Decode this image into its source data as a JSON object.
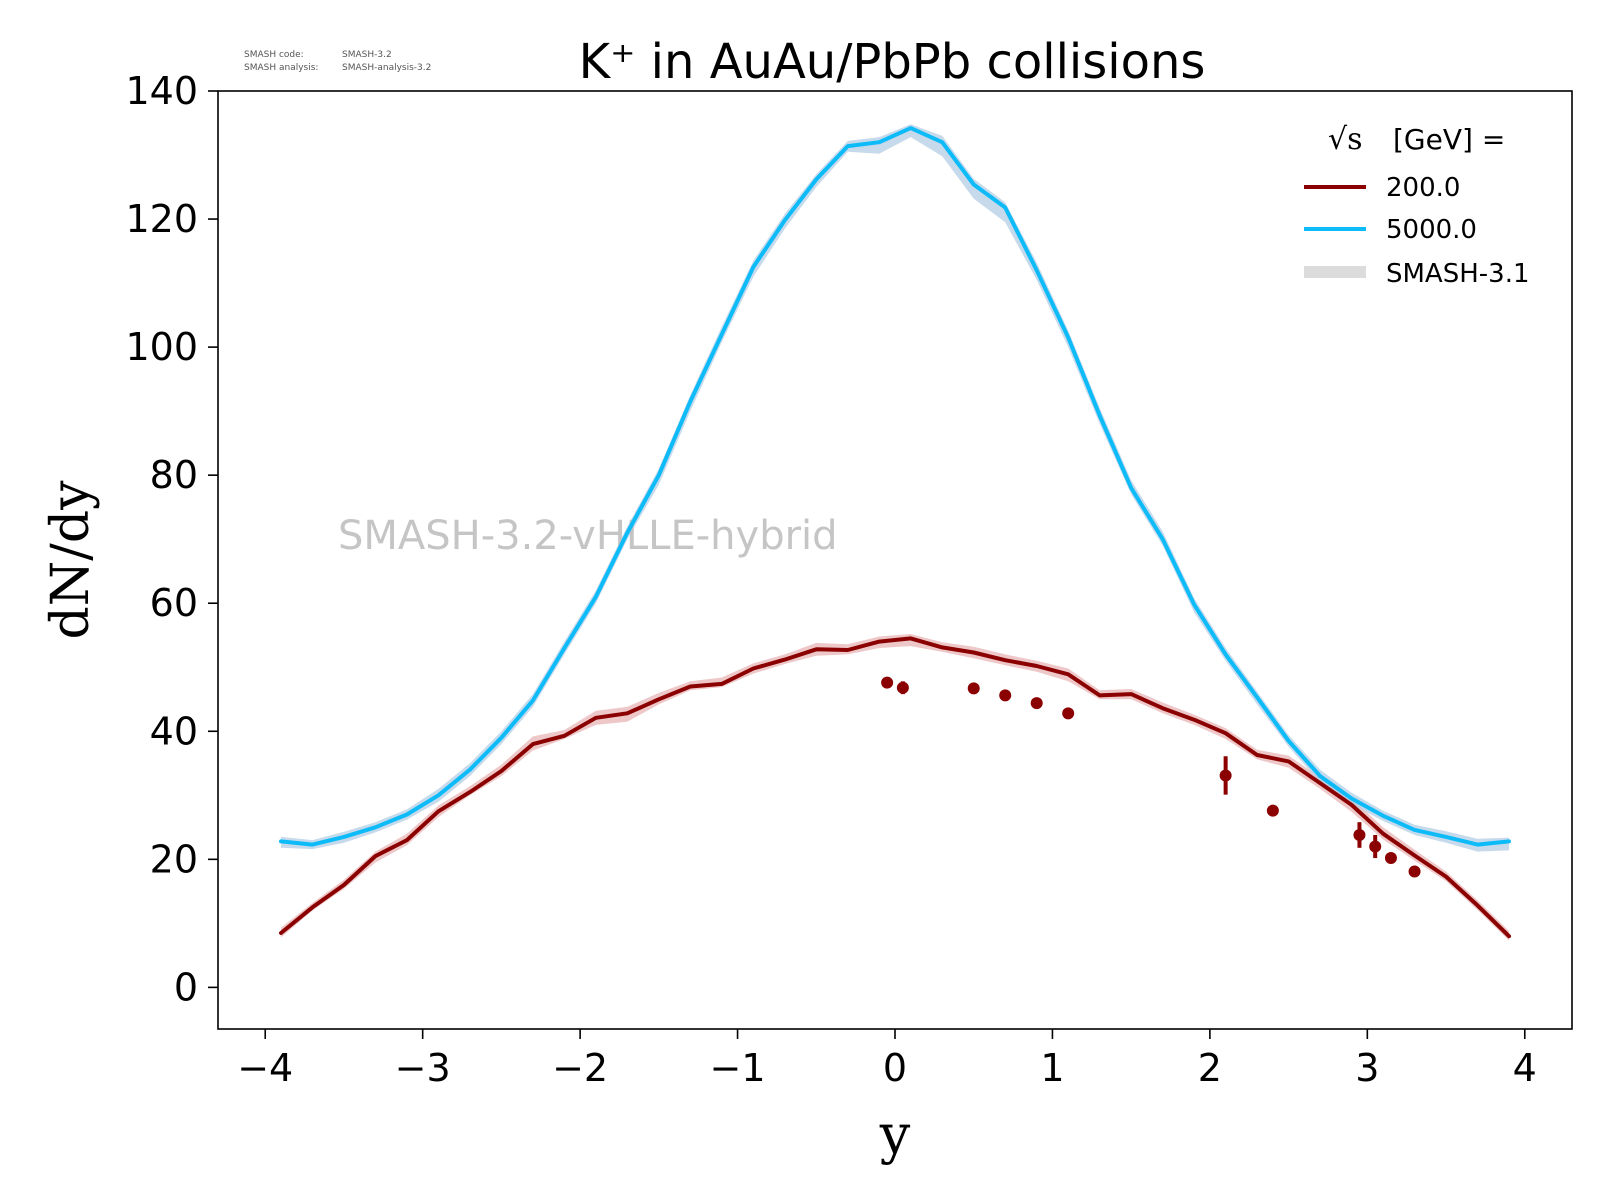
{
  "chart_data": {
    "type": "line",
    "title": "K⁺ in AuAu/PbPb collisions",
    "xlabel": "y",
    "ylabel": "dN/dy",
    "xlim": [
      -4.3,
      4.3
    ],
    "ylim": [
      -6.5,
      140
    ],
    "xticks": [
      -4,
      -3,
      -2,
      -1,
      0,
      1,
      2,
      3,
      4
    ],
    "xtick_labels": [
      "−4",
      "−3",
      "−2",
      "−1",
      "0",
      "1",
      "2",
      "3",
      "4"
    ],
    "yticks": [
      0,
      20,
      40,
      60,
      80,
      100,
      120,
      140
    ],
    "ytick_labels": [
      "0",
      "20",
      "40",
      "60",
      "80",
      "100",
      "120",
      "140"
    ],
    "grid": false,
    "legend": {
      "placement": "top-right",
      "title": "[GeV] =",
      "title_symbol": "√s"
    },
    "watermark": "SMASH-3.2-vHLLE-hybrid",
    "version_info": [
      {
        "label": "SMASH code:",
        "value": "SMASH-3.2"
      },
      {
        "label": "SMASH analysis:",
        "value": "SMASH-analysis-3.2"
      }
    ],
    "band": {
      "name": "SMASH-3.1",
      "color": "#bfbfbf"
    },
    "series": [
      {
        "name": "200.0",
        "color": "#8b0000",
        "band_color": "#e8b5b5",
        "x": [
          -3.9,
          -3.7,
          -3.5,
          -3.3,
          -3.1,
          -2.9,
          -2.7,
          -2.5,
          -2.3,
          -2.1,
          -1.9,
          -1.7,
          -1.5,
          -1.3,
          -1.1,
          -0.9,
          -0.7,
          -0.5,
          -0.3,
          -0.1,
          0.1,
          0.3,
          0.5,
          0.7,
          0.9,
          1.1,
          1.3,
          1.5,
          1.7,
          1.9,
          2.1,
          2.3,
          2.5,
          2.7,
          2.9,
          3.1,
          3.3,
          3.5,
          3.7,
          3.9
        ],
        "y": [
          8.5,
          12.5,
          16.0,
          20.5,
          23.0,
          27.5,
          30.5,
          33.8,
          38.0,
          39.3,
          42.1,
          42.8,
          45.0,
          47.0,
          47.4,
          49.8,
          51.2,
          52.8,
          52.7,
          54.0,
          54.5,
          53.1,
          52.3,
          51.1,
          50.2,
          48.9,
          45.6,
          45.8,
          43.6,
          41.8,
          39.7,
          36.3,
          35.3,
          31.9,
          28.5,
          24.0,
          20.6,
          17.3,
          12.8,
          8.0
        ],
        "band_lower": [
          7.8,
          12.0,
          15.4,
          19.5,
          22.2,
          26.6,
          30.0,
          33.0,
          37.0,
          38.8,
          41.0,
          41.5,
          44.2,
          46.4,
          46.9,
          49.0,
          50.5,
          51.8,
          52.0,
          53.0,
          53.3,
          52.4,
          51.4,
          50.3,
          49.3,
          47.8,
          45.0,
          45.0,
          42.8,
          41.0,
          38.8,
          35.6,
          34.3,
          31.0,
          27.4,
          23.1,
          19.8,
          16.6,
          12.1,
          7.3
        ],
        "band_upper": [
          9.3,
          13.2,
          16.8,
          21.2,
          24.0,
          28.4,
          31.4,
          34.8,
          39.2,
          40.2,
          43.2,
          43.8,
          46.0,
          47.8,
          48.4,
          50.6,
          52.0,
          53.8,
          53.6,
          54.8,
          55.2,
          53.9,
          53.2,
          52.0,
          51.0,
          49.8,
          46.4,
          46.6,
          44.5,
          42.6,
          40.5,
          37.1,
          36.2,
          32.8,
          29.5,
          25.0,
          21.5,
          18.1,
          13.6,
          8.8
        ],
        "measured": {
          "x": [
            -0.05,
            0.05,
            0.5,
            0.7,
            0.9,
            1.1,
            2.1,
            2.4,
            2.95,
            3.05,
            3.15,
            3.3
          ],
          "y": [
            47.6,
            46.8,
            46.7,
            45.6,
            44.4,
            42.8,
            33.1,
            27.6,
            23.8,
            22.0,
            20.2,
            18.1
          ],
          "err": [
            0.5,
            1.0,
            0.6,
            0.6,
            0.6,
            0.6,
            3.0,
            0.6,
            2.0,
            1.8,
            0.6,
            0.6
          ]
        }
      },
      {
        "name": "5000.0",
        "color": "#0cbbf8",
        "band_color": "#b3cde6",
        "x": [
          -3.9,
          -3.7,
          -3.5,
          -3.3,
          -3.1,
          -2.9,
          -2.7,
          -2.5,
          -2.3,
          -2.1,
          -1.9,
          -1.7,
          -1.5,
          -1.3,
          -1.1,
          -0.9,
          -0.7,
          -0.5,
          -0.3,
          -0.1,
          0.1,
          0.3,
          0.5,
          0.7,
          0.9,
          1.1,
          1.3,
          1.5,
          1.7,
          1.9,
          2.1,
          2.3,
          2.5,
          2.7,
          2.9,
          3.1,
          3.3,
          3.5,
          3.7,
          3.9
        ],
        "y": [
          22.8,
          22.3,
          23.5,
          25.0,
          27.0,
          30.0,
          34.0,
          39.0,
          44.8,
          53.0,
          61.0,
          71.0,
          80.0,
          91.5,
          102.0,
          112.5,
          119.8,
          126.2,
          131.4,
          132.0,
          134.2,
          132.0,
          125.4,
          121.8,
          112.0,
          101.5,
          89.3,
          78.0,
          70.0,
          59.8,
          52.0,
          45.3,
          38.5,
          33.0,
          29.5,
          26.8,
          24.6,
          23.5,
          22.3,
          22.8
        ],
        "band_lower": [
          21.8,
          21.6,
          22.6,
          24.2,
          26.2,
          29.0,
          33.0,
          38.0,
          43.8,
          52.0,
          60.0,
          70.0,
          78.5,
          90.0,
          100.8,
          111.0,
          118.5,
          125.0,
          130.5,
          130.2,
          132.8,
          129.8,
          123.2,
          119.5,
          110.5,
          100.0,
          88.0,
          77.0,
          69.0,
          58.6,
          51.0,
          44.2,
          37.6,
          32.0,
          28.6,
          26.0,
          23.8,
          22.6,
          21.2,
          21.4
        ],
        "band_upper": [
          23.5,
          23.0,
          24.3,
          25.8,
          27.8,
          31.0,
          35.0,
          40.0,
          45.8,
          54.0,
          62.0,
          72.0,
          81.0,
          92.5,
          103.2,
          113.5,
          120.8,
          127.0,
          132.2,
          132.8,
          134.8,
          133.0,
          126.3,
          122.6,
          113.2,
          102.6,
          90.5,
          79.2,
          71.2,
          60.8,
          53.0,
          46.2,
          39.4,
          34.0,
          30.4,
          27.6,
          25.4,
          24.4,
          23.2,
          23.4
        ]
      }
    ]
  }
}
